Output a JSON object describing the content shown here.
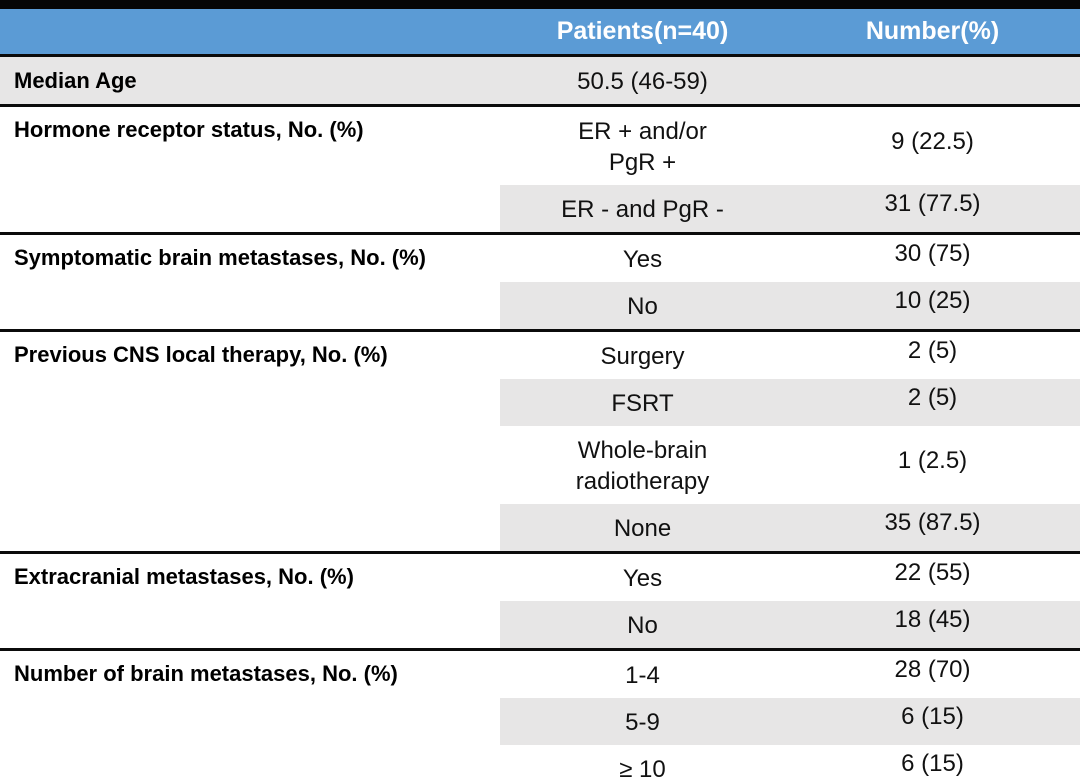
{
  "table": {
    "header": {
      "patients": "Patients(n=40)",
      "number": "Number(%)"
    },
    "colors": {
      "header_bg": "#5b9bd5",
      "header_text": "#ffffff",
      "row_shade": "#e7e6e6",
      "rule": "#0b0b0b"
    },
    "sections": [
      {
        "label": "Median Age",
        "rows": [
          {
            "value": "50.5 (46-59)",
            "number": ""
          }
        ]
      },
      {
        "label": "Hormone receptor status, No. (%)",
        "rows": [
          {
            "value": "ER + and/or\nPgR +",
            "number": "9 (22.5)"
          },
          {
            "value": "ER - and PgR -",
            "number": "31 (77.5)"
          }
        ]
      },
      {
        "label": "Symptomatic brain metastases, No. (%)",
        "rows": [
          {
            "value": "Yes",
            "number": "30 (75)"
          },
          {
            "value": "No",
            "number": "10 (25)"
          }
        ]
      },
      {
        "label": "Previous CNS local therapy, No. (%)",
        "rows": [
          {
            "value": "Surgery",
            "number": "2 (5)"
          },
          {
            "value": "FSRT",
            "number": "2 (5)"
          },
          {
            "value": "Whole-brain\nradiotherapy",
            "number": "1 (2.5)"
          },
          {
            "value": "None",
            "number": "35 (87.5)"
          }
        ]
      },
      {
        "label": "Extracranial metastases, No. (%)",
        "rows": [
          {
            "value": "Yes",
            "number": "22 (55)"
          },
          {
            "value": "No",
            "number": "18 (45)"
          }
        ]
      },
      {
        "label": "Number of brain metastases, No. (%)",
        "rows": [
          {
            "value": "1-4",
            "number": "28 (70)"
          },
          {
            "value": "5-9",
            "number": "6 (15)"
          },
          {
            "value": "≥ 10",
            "number": "6 (15)"
          }
        ]
      }
    ]
  },
  "chart_data": {
    "type": "table",
    "columns": [
      "",
      "Patients(n=40)",
      "Number(%)"
    ],
    "rows": [
      [
        "Median Age",
        "50.5 (46-59)",
        ""
      ],
      [
        "Hormone receptor status, No. (%)",
        "ER + and/or PgR +",
        "9 (22.5)"
      ],
      [
        "",
        "ER - and PgR -",
        "31 (77.5)"
      ],
      [
        "Symptomatic brain metastases, No. (%)",
        "Yes",
        "30 (75)"
      ],
      [
        "",
        "No",
        "10 (25)"
      ],
      [
        "Previous CNS local therapy, No. (%)",
        "Surgery",
        "2 (5)"
      ],
      [
        "",
        "FSRT",
        "2 (5)"
      ],
      [
        "",
        "Whole-brain radiotherapy",
        "1 (2.5)"
      ],
      [
        "",
        "None",
        "35 (87.5)"
      ],
      [
        "Extracranial metastases, No. (%)",
        "Yes",
        "22 (55)"
      ],
      [
        "",
        "No",
        "18 (45)"
      ],
      [
        "Number of brain metastases, No. (%)",
        "1-4",
        "28 (70)"
      ],
      [
        "",
        "5-9",
        "6 (15)"
      ],
      [
        "",
        "≥ 10",
        "6 (15)"
      ]
    ]
  }
}
